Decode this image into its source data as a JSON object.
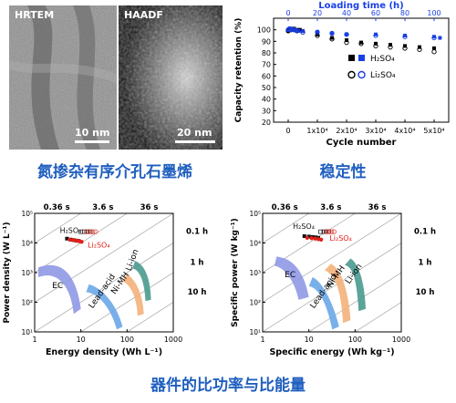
{
  "micrographs": {
    "hrtem": {
      "label": "HRTEM",
      "scale": "10 nm"
    },
    "haadf": {
      "label": "HAADF",
      "scale": "20 nm"
    },
    "caption": "氮掺杂有序介孔石墨烯"
  },
  "stability_caption": "稳定性",
  "ragone_caption": "器件的比功率与比能量",
  "colors": {
    "caption": "#1f5fbf",
    "h2so4": "#111111",
    "li2so4": "#e0201a",
    "black_series": "#000000",
    "blue_series": "#1a3fe6"
  },
  "chart_data": [
    {
      "type": "scatter",
      "title": "",
      "top_axis_label": "Loading time (h)",
      "top_ticks": [
        "0",
        "20",
        "40",
        "60",
        "80",
        "100"
      ],
      "xlabel": "Cycle number",
      "ylabel": "Capacity retention (%)",
      "xlim": [
        -5000,
        55000
      ],
      "ylim": [
        20,
        110
      ],
      "x_ticks": [
        "0",
        "1x10⁴",
        "2x10⁴",
        "3x10⁴",
        "4x10⁴",
        "5x10⁴"
      ],
      "y_ticks": [
        "20",
        "30",
        "40",
        "50",
        "60",
        "70",
        "80",
        "90",
        "100"
      ],
      "legend_position": "inside-right",
      "legend": [
        {
          "name": "H₂SO₄",
          "row": "filled"
        },
        {
          "name": "Li₂SO₄",
          "row": "open"
        }
      ],
      "series": [
        {
          "name": "H2SO4-cycle",
          "style": "filled-black",
          "x": [
            0,
            1000,
            2000,
            3000,
            4000,
            5000,
            10000,
            15000,
            20000,
            25000,
            30000,
            35000,
            40000,
            45000,
            50000
          ],
          "y": [
            99,
            101,
            101,
            100,
            100,
            99,
            96,
            93,
            91,
            89,
            88,
            87,
            86,
            85,
            84
          ]
        },
        {
          "name": "H2SO4-time",
          "style": "filled-blue",
          "x": [
            0,
            500,
            1000,
            1500,
            2000,
            2500,
            3000,
            3500,
            5000,
            10000,
            15000,
            20000,
            30000,
            40000,
            50000,
            52000
          ],
          "y": [
            100,
            101,
            101,
            100,
            100,
            100,
            99,
            99,
            99,
            98,
            97,
            96,
            96,
            95,
            94,
            93
          ]
        },
        {
          "name": "Li2SO4-cycle",
          "style": "open-black",
          "x": [
            0,
            1000,
            2000,
            3000,
            5000,
            10000,
            15000,
            20000,
            25000,
            30000,
            35000,
            40000,
            45000,
            50000
          ],
          "y": [
            99,
            100,
            100,
            99,
            98,
            95,
            92,
            89,
            88,
            86,
            85,
            84,
            83,
            81
          ]
        },
        {
          "name": "Li2SO4-time",
          "style": "open-blue",
          "x": [
            0,
            500,
            1000,
            2000,
            3000,
            5000,
            10000,
            15000,
            20000,
            30000,
            40000,
            50000
          ],
          "y": [
            100,
            101,
            100,
            100,
            99,
            98,
            98,
            97,
            96,
            95,
            94,
            93
          ]
        }
      ]
    },
    {
      "type": "ragone",
      "xlabel": "Energy density (Wh L⁻¹)",
      "ylabel": "Power density (W L⁻¹)",
      "x_ticks": [
        "1",
        "10",
        "100",
        "1000"
      ],
      "y_ticks": [
        "10¹",
        "10²",
        "10³",
        "10⁴",
        "10⁵"
      ],
      "time_top": [
        "0.36 s",
        "3.6 s",
        "36 s"
      ],
      "time_right": [
        "0.1 h",
        "1 h",
        "10 h"
      ],
      "h2so4_label": "H₂SO₄",
      "li2so4_label": "Li₂SO₄",
      "regions": [
        "EC",
        "Lead-acid",
        "Ni-MH",
        "Li-ion"
      ]
    },
    {
      "type": "ragone",
      "xlabel": "Specific energy (Wh kg⁻¹)",
      "ylabel": "Specific power (W kg⁻¹)",
      "x_ticks": [
        "1",
        "10",
        "100",
        "1000"
      ],
      "y_ticks": [
        "10¹",
        "10²",
        "10³",
        "10⁴",
        "10⁵"
      ],
      "time_top": [
        "0.36 s",
        "3.6 s",
        "36 s"
      ],
      "time_right": [
        "0.1 h",
        "1 h",
        "10 h"
      ],
      "h2so4_label": "H₂SO₄",
      "li2so4_label": "Li₂SO₄",
      "regions": [
        "EC",
        "Ni-MH",
        "Lead-acid",
        "Li-ion"
      ]
    }
  ]
}
